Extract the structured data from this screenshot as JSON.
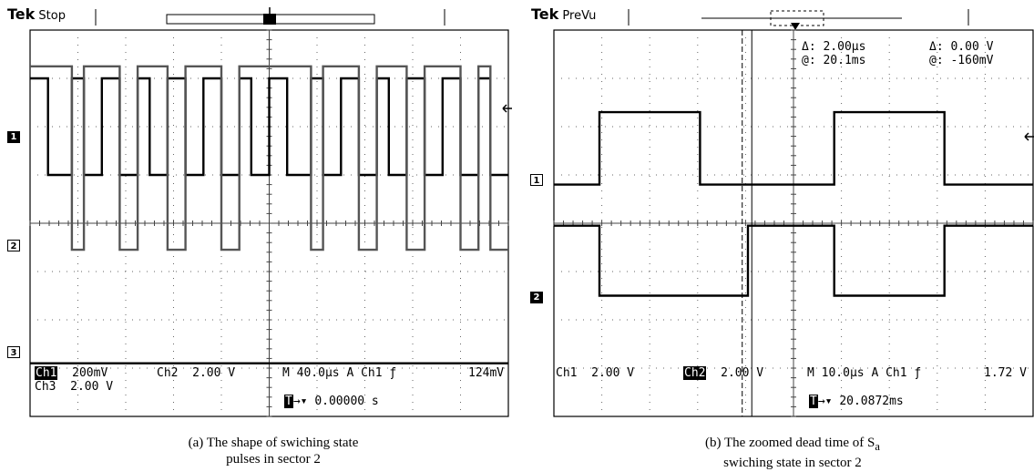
{
  "chart_data": [
    {
      "type": "line",
      "panel": "a",
      "brand": "Tek",
      "status": "Stop",
      "trigger_marker": "T",
      "caption_line1": "(a) The shape of swiching state",
      "caption_line2": "pulses in sector 2",
      "grid": true,
      "xlim": [
        -200,
        200
      ],
      "x_unit": "µs",
      "period_us": 40,
      "x": [
        -200,
        -185,
        -185,
        -165,
        -165,
        -155,
        -155,
        -140,
        -140,
        -125,
        -125,
        -110,
        -110,
        -100,
        -100,
        -85,
        -85,
        -70,
        -70,
        -55,
        -55,
        -40,
        -40,
        -25,
        -25,
        -15,
        -15,
        0,
        0,
        15,
        15,
        35,
        35,
        45,
        45,
        60,
        60,
        75,
        75,
        90,
        90,
        100,
        100,
        115,
        115,
        130,
        130,
        145,
        145,
        160,
        160,
        175,
        175,
        185,
        185,
        200
      ],
      "series": [
        {
          "channel": "1",
          "channel_label": "Ch1",
          "volts_per_div": "200mV",
          "color": "#000000",
          "baseline_div": 1.0,
          "y": [
            2.0,
            2.0,
            0,
            0,
            2.0,
            2.0,
            0,
            0,
            2.0,
            2.0,
            0,
            0,
            2.0,
            2.0,
            0,
            0,
            2.0,
            2.0,
            0,
            0,
            2.0,
            2.0,
            0,
            0,
            2.0,
            2.0,
            0,
            0,
            2.0,
            2.0,
            0,
            0,
            2.0,
            2.0,
            0,
            0,
            2.0,
            2.0,
            0,
            0,
            2.0,
            2.0,
            0,
            0,
            2.0,
            2.0,
            0,
            0,
            2.0,
            2.0,
            0,
            0,
            2.0,
            2.0,
            0,
            0
          ]
        },
        {
          "channel": "2",
          "channel_label": "Ch2",
          "volts_per_div": "2.00 V",
          "color": "#555555",
          "baseline_div": -0.55,
          "y": [
            3.8,
            3.8,
            3.8,
            3.8,
            0,
            0,
            3.8,
            3.8,
            3.8,
            3.8,
            0,
            0,
            3.8,
            3.8,
            3.8,
            3.8,
            0,
            0,
            3.8,
            3.8,
            3.8,
            3.8,
            0,
            0,
            3.8,
            3.8,
            3.8,
            3.8,
            3.8,
            3.8,
            3.8,
            3.8,
            0,
            0,
            3.8,
            3.8,
            3.8,
            3.8,
            0,
            0,
            3.8,
            3.8,
            3.8,
            3.8,
            0,
            0,
            3.8,
            3.8,
            3.8,
            3.8,
            0,
            0,
            3.8,
            3.8,
            0,
            0
          ]
        },
        {
          "channel": "3",
          "channel_label": "Ch3",
          "volts_per_div": "2.00 V",
          "color": "#000000",
          "baseline_div": -3.0,
          "y": [
            0.1,
            0.1,
            0.1,
            0.1,
            0.1,
            0.1,
            0.1,
            0.1,
            0.1,
            0.1,
            0.1,
            0.1,
            0.1,
            0.1,
            0.1,
            0.1,
            0.1,
            0.1,
            0.1,
            0.1,
            0.1,
            0.1,
            0.1,
            0.1,
            0.1,
            0.1,
            0.1,
            0.1,
            0.1,
            0.1,
            0.1,
            0.1,
            0.1,
            0.1,
            0.1,
            0.1,
            0.1,
            0.1,
            0.1,
            0.1,
            0.1,
            0.1,
            0.1,
            0.1,
            0.1,
            0.1,
            0.1,
            0.1,
            0.1,
            0.1,
            0.1,
            0.1,
            0.1,
            0.1,
            0.1,
            0.1
          ]
        }
      ],
      "readout": {
        "ch1": "Ch1",
        "ch1_scale": "200mV",
        "ch2": "Ch2",
        "ch2_scale": "2.00 V",
        "timebase": "M 40.0µs",
        "trig_mode": "A",
        "trig_src": "Ch1",
        "trig_slope": "ƒ",
        "trig_level": "124mV",
        "ch3": "Ch3",
        "ch3_scale": "2.00 V",
        "trigger_position": "0.00000 s"
      }
    },
    {
      "type": "line",
      "panel": "b",
      "brand": "Tek",
      "status": "PreVu",
      "trigger_marker": "T",
      "caption_line1": "(b) The zoomed dead time of S",
      "caption_subscript": "a",
      "caption_line2": "swiching state in sector 2",
      "grid": true,
      "xlim": [
        -50,
        50
      ],
      "x_unit": "µs",
      "cursor_readout": {
        "delta_t_label": "Δ:",
        "delta_t": "2.00µs",
        "delta_v_label": "Δ:",
        "delta_v": "0.00 V",
        "at_t_label": "@:",
        "at_t": "20.1ms",
        "at_v_label": "@:",
        "at_v": "-160mV"
      },
      "cursors_x_us": [
        -10.7,
        -8.7
      ],
      "x": [
        -50,
        -40.5,
        -40.5,
        -19.5,
        -19.5,
        -9.5,
        -9.5,
        8.5,
        8.5,
        31.5,
        31.5,
        50
      ],
      "series": [
        {
          "channel": "1",
          "channel_label": "Ch1",
          "volts_per_div": "2.00 V",
          "color": "#000000",
          "baseline_div": 0.8,
          "y": [
            0,
            0,
            1.5,
            1.5,
            0,
            0,
            0,
            0,
            1.5,
            1.5,
            0,
            0
          ]
        },
        {
          "channel": "2",
          "channel_label": "Ch2",
          "volts_per_div": "2.00 V",
          "color": "#000000",
          "baseline_div": -1.5,
          "y": [
            1.45,
            1.45,
            0,
            0,
            0,
            0,
            1.45,
            1.45,
            0,
            0,
            1.45,
            1.45
          ]
        }
      ],
      "readout": {
        "ch1": "Ch1",
        "ch1_scale": "2.00 V",
        "ch2": "Ch2",
        "ch2_scale": "2.00 V",
        "timebase": "M 10.0µs",
        "trig_mode": "A",
        "trig_src": "Ch1",
        "trig_slope": "ƒ",
        "trig_level": "1.72 V",
        "trigger_position": "20.0872ms"
      }
    }
  ]
}
